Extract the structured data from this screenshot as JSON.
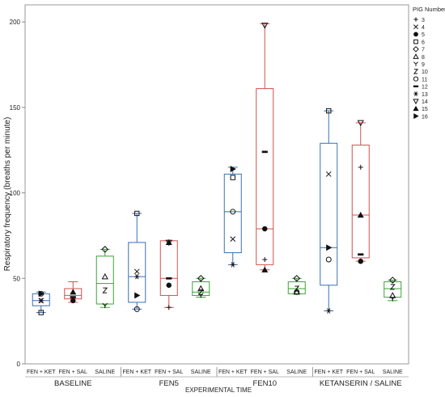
{
  "chart_data": {
    "type": "box",
    "ylabel": "Respiratory frequency (breaths per minute)",
    "xlabel": "EXPERIMENTAL TIME",
    "ylim": [
      0,
      210
    ],
    "yticks": [
      0,
      50,
      100,
      150,
      200
    ],
    "legend": {
      "title": "PIG Number",
      "position": "top-right",
      "entries": [
        {
          "label": "3",
          "marker": "plus"
        },
        {
          "label": "4",
          "marker": "x"
        },
        {
          "label": "5",
          "marker": "circle-filled"
        },
        {
          "label": "6",
          "marker": "square-open"
        },
        {
          "label": "7",
          "marker": "diamond-open"
        },
        {
          "label": "8",
          "marker": "triangle-open"
        },
        {
          "label": "9",
          "marker": "y"
        },
        {
          "label": "10",
          "marker": "z"
        },
        {
          "label": "11",
          "marker": "circle-open"
        },
        {
          "label": "12",
          "marker": "dash"
        },
        {
          "label": "13",
          "marker": "asterisk"
        },
        {
          "label": "14",
          "marker": "triangle-down-open"
        },
        {
          "label": "15",
          "marker": "triangle-filled"
        },
        {
          "label": "16",
          "marker": "triangle-right-filled"
        }
      ]
    },
    "colors": {
      "FEN + KET": "#3a6fb5",
      "FEN + SAL": "#d2504c",
      "SALINE": "#3aa635"
    },
    "groups": [
      {
        "name": "BASELINE",
        "boxes": [
          {
            "label": "FEN + KET",
            "min": 30,
            "q1": 34,
            "median": 37,
            "q3": 41,
            "max": 42,
            "points": [
              {
                "pig": "11",
                "y": 41
              },
              {
                "pig": "16",
                "y": 41
              },
              {
                "pig": "4",
                "y": 37
              },
              {
                "pig": "13",
                "y": 37
              },
              {
                "pig": "6",
                "y": 30
              }
            ]
          },
          {
            "label": "FEN + SAL",
            "min": 36,
            "q1": 38,
            "median": 40,
            "q3": 44,
            "max": 48,
            "points": [
              {
                "pig": "15",
                "y": 42
              },
              {
                "pig": "12",
                "y": 39
              },
              {
                "pig": "5",
                "y": 37
              }
            ]
          },
          {
            "label": "SALINE",
            "min": 33,
            "q1": 35,
            "median": 47,
            "q3": 63,
            "max": 67,
            "points": [
              {
                "pig": "7",
                "y": 67
              },
              {
                "pig": "8",
                "y": 51
              },
              {
                "pig": "10",
                "y": 43
              },
              {
                "pig": "9",
                "y": 34
              }
            ]
          }
        ]
      },
      {
        "name": "FEN5",
        "boxes": [
          {
            "label": "FEN + KET",
            "min": 32,
            "q1": 36,
            "median": 51,
            "q3": 71,
            "max": 88,
            "points": [
              {
                "pig": "6",
                "y": 88
              },
              {
                "pig": "4",
                "y": 54
              },
              {
                "pig": "13",
                "y": 51
              },
              {
                "pig": "16",
                "y": 40
              },
              {
                "pig": "11",
                "y": 32
              }
            ]
          },
          {
            "label": "FEN + SAL",
            "min": 33,
            "q1": 40,
            "median": 50,
            "q3": 72,
            "max": 72,
            "points": [
              {
                "pig": "14",
                "y": 71
              },
              {
                "pig": "15",
                "y": 71
              },
              {
                "pig": "12",
                "y": 50
              },
              {
                "pig": "5",
                "y": 46
              },
              {
                "pig": "3",
                "y": 33
              }
            ]
          },
          {
            "label": "SALINE",
            "min": 39,
            "q1": 40,
            "median": 42,
            "q3": 48,
            "max": 50,
            "points": [
              {
                "pig": "7",
                "y": 50
              },
              {
                "pig": "8",
                "y": 44
              },
              {
                "pig": "10",
                "y": 42
              },
              {
                "pig": "9",
                "y": 40
              }
            ]
          }
        ]
      },
      {
        "name": "FEN10",
        "boxes": [
          {
            "label": "FEN + KET",
            "min": 58,
            "q1": 65,
            "median": 89,
            "q3": 111,
            "max": 115,
            "points": [
              {
                "pig": "16",
                "y": 114
              },
              {
                "pig": "6",
                "y": 109
              },
              {
                "pig": "11",
                "y": 89
              },
              {
                "pig": "4",
                "y": 73
              },
              {
                "pig": "13",
                "y": 58
              }
            ]
          },
          {
            "label": "FEN + SAL",
            "min": 55,
            "q1": 58,
            "median": 79,
            "q3": 161,
            "max": 199,
            "points": [
              {
                "pig": "14",
                "y": 198
              },
              {
                "pig": "12",
                "y": 124
              },
              {
                "pig": "5",
                "y": 79
              },
              {
                "pig": "3",
                "y": 61
              },
              {
                "pig": "15",
                "y": 55
              }
            ]
          },
          {
            "label": "SALINE",
            "min": 41,
            "q1": 41,
            "median": 44,
            "q3": 48,
            "max": 50,
            "points": [
              {
                "pig": "7",
                "y": 50
              },
              {
                "pig": "10",
                "y": 44
              },
              {
                "pig": "8",
                "y": 42
              },
              {
                "pig": "11",
                "y": 42
              }
            ]
          }
        ]
      },
      {
        "name": "KETANSERIN / SALINE",
        "boxes": [
          {
            "label": "FEN + KET",
            "min": 31,
            "q1": 46,
            "median": 68,
            "q3": 129,
            "max": 148,
            "points": [
              {
                "pig": "6",
                "y": 148
              },
              {
                "pig": "4",
                "y": 111
              },
              {
                "pig": "16",
                "y": 68
              },
              {
                "pig": "11",
                "y": 61
              },
              {
                "pig": "13",
                "y": 31
              }
            ]
          },
          {
            "label": "FEN + SAL",
            "min": 60,
            "q1": 62,
            "median": 87,
            "q3": 128,
            "max": 141,
            "points": [
              {
                "pig": "14",
                "y": 141
              },
              {
                "pig": "3",
                "y": 115
              },
              {
                "pig": "15",
                "y": 87
              },
              {
                "pig": "12",
                "y": 64
              },
              {
                "pig": "5",
                "y": 60
              }
            ]
          },
          {
            "label": "SALINE",
            "min": 37,
            "q1": 39,
            "median": 44,
            "q3": 48,
            "max": 49,
            "points": [
              {
                "pig": "7",
                "y": 49
              },
              {
                "pig": "10",
                "y": 45
              },
              {
                "pig": "8",
                "y": 40
              },
              {
                "pig": "9",
                "y": 38
              }
            ]
          }
        ]
      }
    ]
  }
}
